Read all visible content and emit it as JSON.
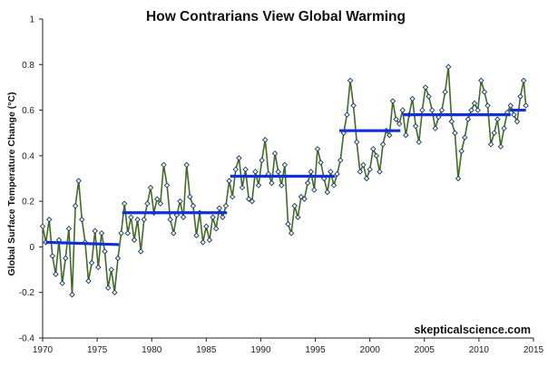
{
  "chart_data": {
    "type": "line",
    "title": "How Contrarians View Global Warming",
    "xlabel": "",
    "ylabel": "Global Surface Temperature Change (°C)",
    "xlim": [
      1970,
      2015
    ],
    "ylim": [
      -0.4,
      1
    ],
    "x_ticks": [
      "1970",
      "1975",
      "1980",
      "1985",
      "1990",
      "1995",
      "2000",
      "2005",
      "2010",
      "2015"
    ],
    "y_ticks": [
      "-0.4",
      "-0.2",
      "0",
      "0.2",
      "0.4",
      "0.6",
      "0.8",
      "1"
    ],
    "grid": false,
    "legend": "none",
    "annotation": "skepticalscience.com",
    "colors": {
      "series_line": "#3f6b25",
      "marker_fill": "#eef4f8",
      "marker_edge": "#1f3a5c",
      "trend": "#1230d8"
    },
    "series": [
      {
        "points": [
          [
            1970.0,
            0.09
          ],
          [
            1970.3,
            0.02
          ],
          [
            1970.6,
            0.12
          ],
          [
            1970.9,
            -0.04
          ],
          [
            1971.2,
            -0.12
          ],
          [
            1971.5,
            0.03
          ],
          [
            1971.8,
            -0.16
          ],
          [
            1972.1,
            -0.05
          ],
          [
            1972.4,
            0.08
          ],
          [
            1972.7,
            -0.21
          ],
          [
            1973.0,
            0.18
          ],
          [
            1973.3,
            0.29
          ],
          [
            1973.6,
            0.12
          ],
          [
            1973.9,
            0.02
          ],
          [
            1974.2,
            -0.15
          ],
          [
            1974.5,
            -0.07
          ],
          [
            1974.8,
            0.07
          ],
          [
            1975.1,
            -0.09
          ],
          [
            1975.4,
            0.06
          ],
          [
            1975.7,
            -0.02
          ],
          [
            1976.0,
            -0.18
          ],
          [
            1976.3,
            -0.1
          ],
          [
            1976.6,
            -0.2
          ],
          [
            1976.9,
            -0.05
          ],
          [
            1977.2,
            0.06
          ],
          [
            1977.5,
            0.19
          ],
          [
            1977.8,
            0.06
          ],
          [
            1978.1,
            0.13
          ],
          [
            1978.4,
            0.03
          ],
          [
            1978.7,
            0.12
          ],
          [
            1979.0,
            -0.02
          ],
          [
            1979.3,
            0.12
          ],
          [
            1979.6,
            0.19
          ],
          [
            1979.9,
            0.26
          ],
          [
            1980.2,
            0.15
          ],
          [
            1980.5,
            0.21
          ],
          [
            1980.8,
            0.19
          ],
          [
            1981.1,
            0.36
          ],
          [
            1981.4,
            0.27
          ],
          [
            1981.7,
            0.12
          ],
          [
            1982.0,
            0.06
          ],
          [
            1982.3,
            0.14
          ],
          [
            1982.6,
            0.2
          ],
          [
            1982.9,
            0.13
          ],
          [
            1983.2,
            0.36
          ],
          [
            1983.5,
            0.22
          ],
          [
            1983.8,
            0.18
          ],
          [
            1984.1,
            0.05
          ],
          [
            1984.4,
            0.15
          ],
          [
            1984.7,
            0.02
          ],
          [
            1985.0,
            0.09
          ],
          [
            1985.3,
            0.03
          ],
          [
            1985.6,
            0.13
          ],
          [
            1985.9,
            0.08
          ],
          [
            1986.2,
            0.17
          ],
          [
            1986.5,
            0.13
          ],
          [
            1986.8,
            0.18
          ],
          [
            1987.1,
            0.29
          ],
          [
            1987.4,
            0.22
          ],
          [
            1987.7,
            0.34
          ],
          [
            1988.0,
            0.39
          ],
          [
            1988.3,
            0.26
          ],
          [
            1988.6,
            0.34
          ],
          [
            1988.9,
            0.21
          ],
          [
            1989.2,
            0.2
          ],
          [
            1989.5,
            0.33
          ],
          [
            1989.8,
            0.27
          ],
          [
            1990.1,
            0.38
          ],
          [
            1990.4,
            0.47
          ],
          [
            1990.7,
            0.32
          ],
          [
            1991.0,
            0.28
          ],
          [
            1991.3,
            0.41
          ],
          [
            1991.6,
            0.33
          ],
          [
            1991.9,
            0.27
          ],
          [
            1992.2,
            0.36
          ],
          [
            1992.5,
            0.1
          ],
          [
            1992.8,
            0.06
          ],
          [
            1993.1,
            0.18
          ],
          [
            1993.4,
            0.13
          ],
          [
            1993.7,
            0.22
          ],
          [
            1994.0,
            0.21
          ],
          [
            1994.3,
            0.28
          ],
          [
            1994.6,
            0.33
          ],
          [
            1994.9,
            0.25
          ],
          [
            1995.2,
            0.43
          ],
          [
            1995.5,
            0.37
          ],
          [
            1995.8,
            0.3
          ],
          [
            1996.1,
            0.24
          ],
          [
            1996.4,
            0.33
          ],
          [
            1996.7,
            0.27
          ],
          [
            1997.0,
            0.32
          ],
          [
            1997.3,
            0.38
          ],
          [
            1997.6,
            0.5
          ],
          [
            1997.9,
            0.58
          ],
          [
            1998.2,
            0.73
          ],
          [
            1998.5,
            0.62
          ],
          [
            1998.8,
            0.46
          ],
          [
            1999.1,
            0.33
          ],
          [
            1999.4,
            0.36
          ],
          [
            1999.7,
            0.3
          ],
          [
            2000.0,
            0.34
          ],
          [
            2000.3,
            0.43
          ],
          [
            2000.6,
            0.4
          ],
          [
            2000.9,
            0.33
          ],
          [
            2001.2,
            0.45
          ],
          [
            2001.5,
            0.51
          ],
          [
            2001.8,
            0.49
          ],
          [
            2002.1,
            0.64
          ],
          [
            2002.4,
            0.56
          ],
          [
            2002.7,
            0.54
          ],
          [
            2003.0,
            0.6
          ],
          [
            2003.3,
            0.49
          ],
          [
            2003.6,
            0.58
          ],
          [
            2003.9,
            0.65
          ],
          [
            2004.2,
            0.53
          ],
          [
            2004.5,
            0.46
          ],
          [
            2004.8,
            0.6
          ],
          [
            2005.1,
            0.7
          ],
          [
            2005.4,
            0.66
          ],
          [
            2005.7,
            0.6
          ],
          [
            2006.0,
            0.52
          ],
          [
            2006.3,
            0.57
          ],
          [
            2006.6,
            0.6
          ],
          [
            2006.9,
            0.68
          ],
          [
            2007.2,
            0.79
          ],
          [
            2007.5,
            0.55
          ],
          [
            2007.8,
            0.5
          ],
          [
            2008.1,
            0.3
          ],
          [
            2008.4,
            0.42
          ],
          [
            2008.7,
            0.48
          ],
          [
            2009.0,
            0.56
          ],
          [
            2009.3,
            0.6
          ],
          [
            2009.6,
            0.63
          ],
          [
            2009.9,
            0.6
          ],
          [
            2010.2,
            0.73
          ],
          [
            2010.5,
            0.68
          ],
          [
            2010.8,
            0.62
          ],
          [
            2011.1,
            0.45
          ],
          [
            2011.4,
            0.5
          ],
          [
            2011.7,
            0.56
          ],
          [
            2012.0,
            0.44
          ],
          [
            2012.3,
            0.52
          ],
          [
            2012.6,
            0.59
          ],
          [
            2012.9,
            0.62
          ],
          [
            2013.2,
            0.58
          ],
          [
            2013.5,
            0.55
          ],
          [
            2013.8,
            0.66
          ],
          [
            2014.1,
            0.73
          ],
          [
            2014.3,
            0.62
          ]
        ]
      }
    ],
    "trend_segments": [
      {
        "x": [
          1970.3,
          1977.0
        ],
        "y": [
          0.02,
          0.01
        ]
      },
      {
        "x": [
          1977.3,
          1986.9
        ],
        "y": [
          0.15,
          0.15
        ]
      },
      {
        "x": [
          1987.2,
          1996.8
        ],
        "y": [
          0.31,
          0.31
        ]
      },
      {
        "x": [
          1997.2,
          2002.8
        ],
        "y": [
          0.51,
          0.51
        ]
      },
      {
        "x": [
          2003.0,
          2012.9
        ],
        "y": [
          0.58,
          0.58
        ]
      },
      {
        "x": [
          2012.8,
          2014.3
        ],
        "y": [
          0.6,
          0.6
        ]
      }
    ]
  }
}
